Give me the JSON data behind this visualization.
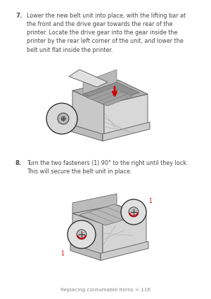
{
  "bg_color": "#ffffff",
  "text_color": "#4a4a4a",
  "footer_color": "#888888",
  "step7_number": "7.",
  "step7_text": "Lower the new belt unit into place, with the lifting bar at\nthe front and the drive gear towards the rear of the\nprinter. Locate the drive gear into the gear inside the\nprinter by the rear left corner of the unit, and lower the\nbelt unit flat inside the printer.",
  "step8_number": "8.",
  "step8_text": "Turn the two fasteners (1) 90° to the right until they lock.\nThis will secure the belt unit in place.",
  "footer_text": "Replacing consumable items > 116",
  "font_size_body": 5.8,
  "font_size_footer": 5.2,
  "font_size_num": 6.2,
  "red_color": "#cc0000"
}
